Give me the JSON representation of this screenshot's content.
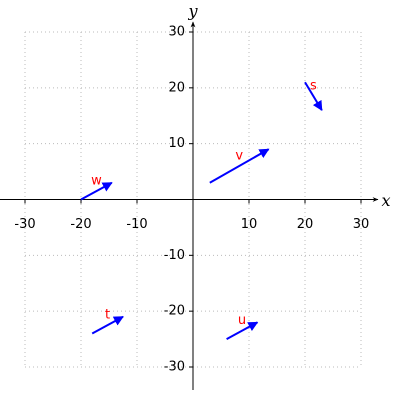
{
  "chart_data": {
    "type": "vector",
    "x_label": "x",
    "y_label": "y",
    "xlim": [
      -30,
      30
    ],
    "ylim": [
      -30,
      30
    ],
    "xticks": [
      -30,
      -20,
      -10,
      10,
      20,
      30
    ],
    "yticks": [
      -30,
      -20,
      -10,
      10,
      20,
      30
    ],
    "grid": true,
    "color": "#0000ff",
    "label_color": "#ff0000",
    "vectors": [
      {
        "name": "s",
        "x0": 20,
        "y0": 21,
        "x1": 23,
        "y1": 16
      },
      {
        "name": "v",
        "x0": 3,
        "y0": 3,
        "x1": 13.5,
        "y1": 9
      },
      {
        "name": "w",
        "x0": -20,
        "y0": 0,
        "x1": -14.5,
        "y1": 3
      },
      {
        "name": "t",
        "x0": -18,
        "y0": -24,
        "x1": -12.5,
        "y1": -21
      },
      {
        "name": "u",
        "x0": 6,
        "y0": -25,
        "x1": 11.5,
        "y1": -22
      }
    ]
  }
}
